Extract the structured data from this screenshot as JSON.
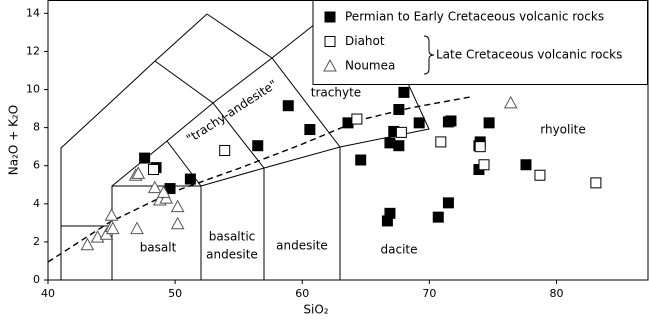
{
  "chart_data": {
    "type": "scatter",
    "x_label": "SiO₂",
    "y_label": "Na₂O + K₂O",
    "xlim": [
      40,
      87.2
    ],
    "ylim": [
      0,
      14.7
    ],
    "xticks": [
      40,
      50,
      60,
      70,
      80
    ],
    "yticks": [
      0,
      2,
      4,
      6,
      8,
      10,
      12,
      14
    ],
    "legend": "top-right",
    "legend_group_label": "Late Cretaceous volcanic rocks",
    "annotations": [
      "basalt",
      "basaltic",
      "andesite",
      "andesite",
      "dacite",
      "trachyte",
      "\"trachy-andesite\"",
      "rhyolite"
    ],
    "series": [
      {
        "name": "Permian to Early Cretaceous volcanic rocks",
        "marker": "square",
        "color": "#000000",
        "fill": "#000000",
        "x": [
          47.6,
          48.5,
          49.6,
          51.2,
          56.5,
          58.9,
          60.6,
          63.6,
          64.6,
          66.9,
          67.2,
          67.6,
          67.6,
          68.0,
          66.9,
          66.7,
          69.2,
          70.7,
          71.5,
          71.5,
          71.7,
          74.7,
          73.9,
          74.0,
          73.9,
          77.6
        ],
        "values": [
          6.4,
          5.9,
          4.8,
          5.3,
          7.05,
          9.15,
          7.9,
          8.25,
          6.3,
          7.2,
          7.8,
          7.05,
          8.95,
          9.85,
          3.5,
          3.1,
          8.25,
          3.3,
          4.05,
          8.3,
          8.35,
          8.25,
          7.05,
          7.25,
          5.8,
          6.05
        ]
      },
      {
        "name": "Diahot",
        "marker": "square",
        "color": "#000000",
        "fill": "#ffffff",
        "x": [
          48.3,
          53.9,
          64.3,
          67.8,
          70.9,
          74.0,
          74.3,
          78.7,
          83.1
        ],
        "values": [
          5.8,
          6.8,
          8.45,
          7.75,
          7.25,
          7.0,
          6.05,
          5.5,
          5.1
        ]
      },
      {
        "name": "Noumea",
        "marker": "triangle",
        "color": "#555555",
        "fill": "#ffffff",
        "x": [
          43.1,
          43.9,
          44.6,
          45.0,
          45.0,
          45.1,
          46.9,
          47.1,
          47.0,
          48.4,
          48.8,
          49.3,
          49.1,
          50.2,
          50.2,
          76.4
        ],
        "values": [
          1.85,
          2.25,
          2.4,
          2.8,
          3.4,
          2.7,
          5.5,
          5.6,
          2.7,
          4.85,
          4.2,
          4.3,
          4.6,
          3.85,
          2.95,
          9.3
        ]
      }
    ]
  }
}
